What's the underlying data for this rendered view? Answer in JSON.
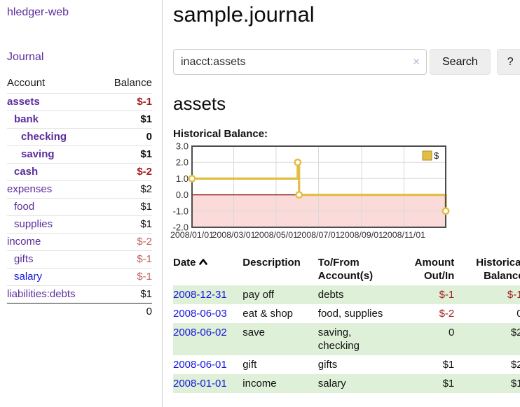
{
  "app": {
    "brand": "hledger-web"
  },
  "sidebar": {
    "nav_journal": "Journal",
    "accounts": {
      "headers": [
        "Account",
        "Balance"
      ],
      "rows": [
        {
          "account": "assets",
          "balance": "$-1",
          "level": 0,
          "bold": true,
          "balance_style": "neg-strong"
        },
        {
          "account": "bank",
          "balance": "$1",
          "level": 1,
          "bold": true,
          "balance_style": "normal"
        },
        {
          "account": "checking",
          "balance": "0",
          "level": 2,
          "bold": true,
          "balance_style": "normal"
        },
        {
          "account": "saving",
          "balance": "$1",
          "level": 2,
          "bold": true,
          "balance_style": "normal"
        },
        {
          "account": "cash",
          "balance": "$-2",
          "level": 1,
          "bold": true,
          "balance_style": "neg-strong"
        },
        {
          "account": "expenses",
          "balance": "$2",
          "level": 0,
          "bold": false,
          "balance_style": "normal"
        },
        {
          "account": "food",
          "balance": "$1",
          "level": 1,
          "bold": false,
          "balance_style": "normal"
        },
        {
          "account": "supplies",
          "balance": "$1",
          "level": 1,
          "bold": false,
          "balance_style": "normal"
        },
        {
          "account": "income",
          "balance": "$-2",
          "level": 0,
          "bold": false,
          "balance_style": "neg-soft"
        },
        {
          "account": "gifts",
          "balance": "$-1",
          "level": 1,
          "bold": false,
          "balance_style": "neg-soft"
        },
        {
          "account": "salary",
          "balance": "$-1",
          "level": 1,
          "bold": false,
          "balance_style": "neg-soft",
          "link_style": "unvisited"
        },
        {
          "account": "liabilities:debts",
          "balance": "$1",
          "level": 0,
          "bold": false,
          "balance_style": "normal"
        }
      ],
      "total": "0"
    }
  },
  "header": {
    "title": "sample.journal"
  },
  "search": {
    "value": "inacct:assets",
    "clear_icon": "✕",
    "button_label": "Search",
    "help_label": "?"
  },
  "page": {
    "heading": "assets",
    "chart_title": "Historical Balance:"
  },
  "chart_data": {
    "type": "line",
    "step": true,
    "title": "Historical Balance:",
    "x_range": [
      "2008-01-01",
      "2008-12-31"
    ],
    "ylim": [
      -2,
      3
    ],
    "y_ticks": [
      "3.0",
      "2.0",
      "1.0",
      "0.0",
      "-1.0",
      "-2.0"
    ],
    "x_ticks": [
      {
        "label": "2008/01/01",
        "date": "2008-01-01"
      },
      {
        "label": "2008/03/01",
        "date": "2008-03-01"
      },
      {
        "label": "2008/05/01",
        "date": "2008-05-01"
      },
      {
        "label": "2008/07/01",
        "date": "2008-07-01"
      },
      {
        "label": "2008/09/01",
        "date": "2008-09-01"
      },
      {
        "label": "2008/11/01",
        "date": "2008-11-01"
      }
    ],
    "series": [
      {
        "name": "$",
        "color": "#e2be45",
        "points": [
          {
            "date": "2008-01-01",
            "value": 1
          },
          {
            "date": "2008-06-01",
            "value": 2
          },
          {
            "date": "2008-06-03",
            "value": 0
          },
          {
            "date": "2008-12-31",
            "value": -1
          }
        ]
      }
    ],
    "grid": true,
    "legend_position": "top-right",
    "negative_region": true,
    "colors": {
      "negative_region": "#fbdada",
      "zero_line": "#8b0000",
      "grid": "#d9d9d9",
      "border": "#4d4d4d",
      "legend_swatch_border": "#b3882a"
    }
  },
  "register": {
    "headers": [
      {
        "label": "Date",
        "sort": "asc"
      },
      {
        "label": "Description"
      },
      {
        "label": "To/From Account(s)"
      },
      {
        "label": "Amount Out/In",
        "align": "right"
      },
      {
        "label": "Historical Balance",
        "align": "right"
      }
    ],
    "rows": [
      {
        "date": "2008-12-31",
        "description": "pay off",
        "accounts": "debts",
        "amount": "$-1",
        "amount_neg": true,
        "balance": "$-1",
        "balance_neg": true
      },
      {
        "date": "2008-06-03",
        "description": "eat & shop",
        "accounts": "food, supplies",
        "amount": "$-2",
        "amount_neg": true,
        "balance": "0",
        "balance_neg": false
      },
      {
        "date": "2008-06-02",
        "description": "save",
        "accounts": "saving, checking",
        "amount": "0",
        "amount_neg": false,
        "balance": "$2",
        "balance_neg": false
      },
      {
        "date": "2008-06-01",
        "description": "gift",
        "accounts": "gifts",
        "amount": "$1",
        "amount_neg": false,
        "balance": "$2",
        "balance_neg": false
      },
      {
        "date": "2008-01-01",
        "description": "income",
        "accounts": "salary",
        "amount": "$1",
        "amount_neg": false,
        "balance": "$1",
        "balance_neg": false
      }
    ]
  },
  "colors": {
    "link_purple": "#5c2d9c",
    "link_blue": "#1515dd",
    "neg_strong": "#a21c1c",
    "neg_soft": "#c05f5f",
    "row_stripe": "#dff0d8",
    "series_gold": "#e2be45"
  }
}
